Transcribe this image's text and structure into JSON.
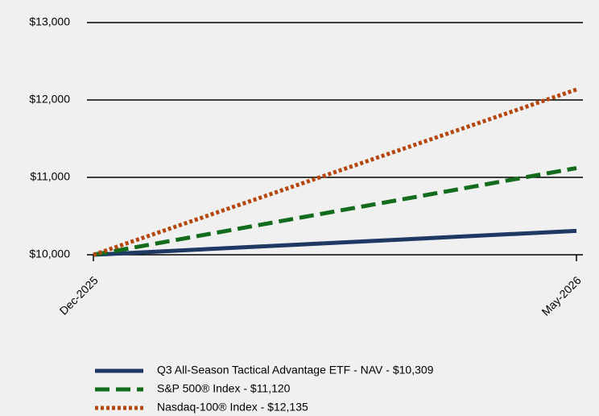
{
  "chart_data": {
    "type": "line",
    "categories": [
      "Dec-2025",
      "May-2026"
    ],
    "series": [
      {
        "name": "Q3 All-Season Tactical Advantage ETF - NAV - $10,309",
        "color": "#1f3864",
        "dash": "solid",
        "values": [
          10000,
          10309
        ]
      },
      {
        "name": "S&P 500® Index - $11,120",
        "color": "#136b1c",
        "dash": "dashed",
        "values": [
          10000,
          11120
        ]
      },
      {
        "name": "Nasdaq-100® Index - $12,135",
        "color": "#b5470d",
        "dash": "dotted",
        "values": [
          10000,
          12135
        ]
      }
    ],
    "ylim": [
      10000,
      13000
    ],
    "yticks": [
      {
        "value": 10000,
        "label": "$10,000"
      },
      {
        "value": 11000,
        "label": "$11,000"
      },
      {
        "value": 12000,
        "label": "$12,000"
      },
      {
        "value": 13000,
        "label": "$13,000"
      }
    ],
    "grid": true
  }
}
